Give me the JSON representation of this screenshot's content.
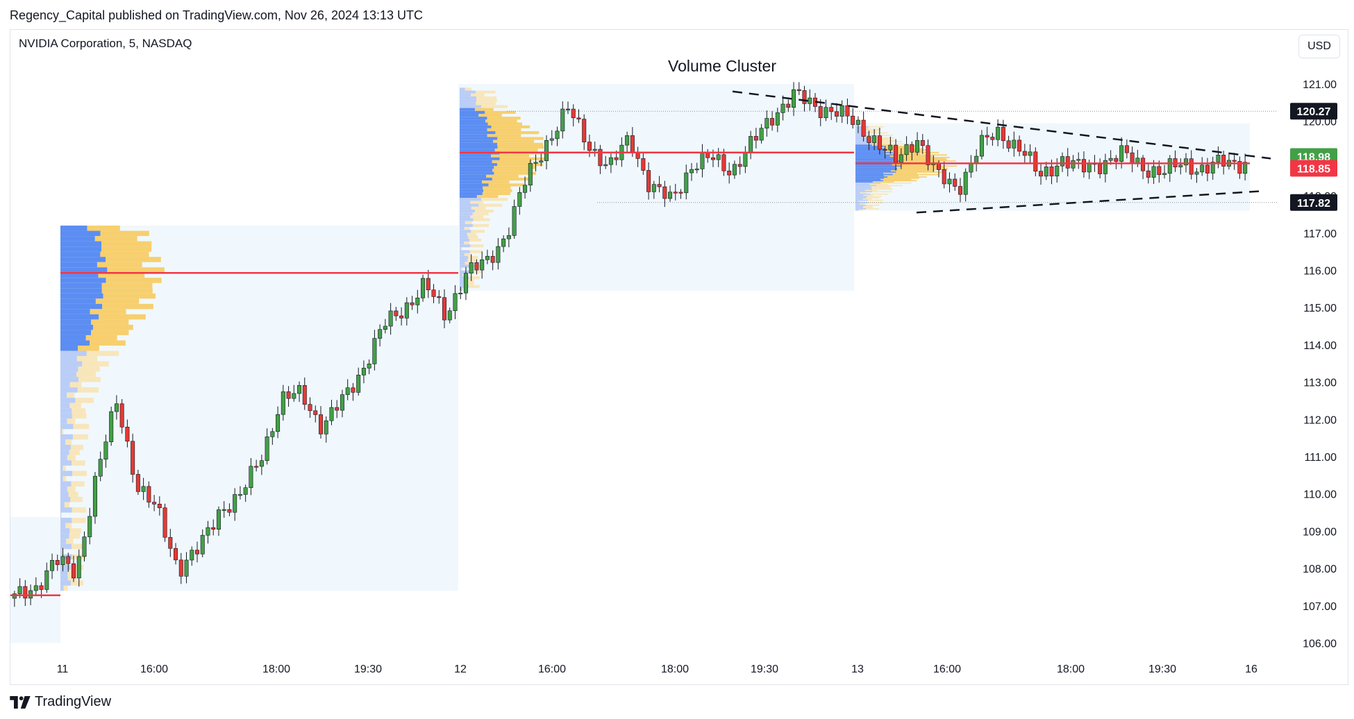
{
  "header": {
    "published": "Regency_Capital published on TradingView.com, Nov 26, 2024 13:13 UTC"
  },
  "symbol": "NVIDIA Corporation, 5, NASDAQ",
  "currency": "USD",
  "footer": {
    "brand": "TradingView"
  },
  "chart_data": {
    "type": "candlestick",
    "title": "Volume Cluster",
    "y_ticks": [
      "121.00",
      "120.00",
      "119.00",
      "118.00",
      "117.00",
      "116.00",
      "115.00",
      "114.00",
      "113.00",
      "112.00",
      "111.00",
      "110.00",
      "109.00",
      "108.00",
      "107.00",
      "106.00"
    ],
    "ylim": [
      105.6,
      121.5
    ],
    "x_ticks": [
      "11",
      "16:00",
      "18:00",
      "19:30",
      "12",
      "16:00",
      "18:00",
      "19:30",
      "13",
      "16:00",
      "18:00",
      "19:30",
      "16"
    ],
    "price_tags": [
      {
        "label": "120.27",
        "value": 120.27,
        "color": "#131722"
      },
      {
        "label": "118.98",
        "value": 118.98,
        "color": "#43a047"
      },
      {
        "label": "118.85",
        "value": 118.85,
        "color": "#f23645"
      },
      {
        "label": "117.82",
        "value": 117.82,
        "color": "#131722"
      }
    ],
    "points_of_control": [
      {
        "session": "11",
        "value": 115.93
      },
      {
        "session": "12",
        "value": 119.16
      },
      {
        "session": "13",
        "value": 118.87
      },
      {
        "session": "pre",
        "value": 107.28
      }
    ],
    "session_ranges": [
      {
        "session": "11",
        "low": 107.4,
        "high": 117.2
      },
      {
        "session": "12",
        "low": 115.45,
        "high": 121.0
      },
      {
        "session": "13",
        "low": 117.6,
        "high": 119.95
      }
    ],
    "triangle_pattern": {
      "upper_start": 120.8,
      "upper_end": 119.0,
      "lower_start": 117.55,
      "lower_end": 118.13
    },
    "series": [
      {
        "name": "",
        "close_path": [
          107.2,
          107.5,
          108.2,
          107.9,
          110.5,
          112.5,
          110.2,
          109.5,
          108.0,
          108.5,
          109.6,
          109.9,
          111.0,
          112.5,
          112.7,
          111.8,
          112.5,
          113.4,
          114.5,
          115.0,
          115.6,
          114.8,
          115.9,
          116.2,
          117.0,
          118.5,
          119.5,
          120.3,
          119.4,
          118.7,
          119.6,
          118.2,
          117.9,
          118.8,
          119.0,
          118.7,
          119.4,
          120.2,
          120.7,
          120.4,
          120.3,
          119.9,
          119.5,
          118.9,
          119.6,
          118.5,
          118.2,
          119.3,
          119.7,
          119.3,
          118.5,
          119.0,
          118.7,
          118.9,
          119.1,
          118.8,
          118.6,
          118.9,
          118.7,
          118.9,
          118.9
        ]
      }
    ]
  }
}
